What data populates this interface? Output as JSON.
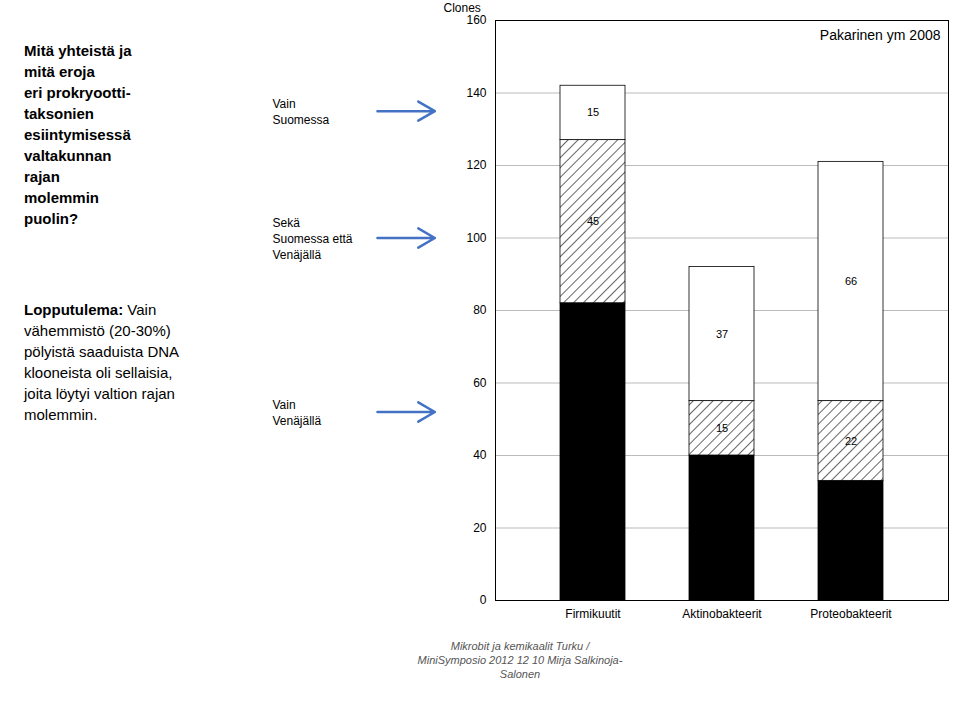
{
  "chart_data": {
    "type": "bar",
    "stacked": true,
    "title": "Pakarinen ym 2008",
    "ylabel": "Clones",
    "categories": [
      "Firmikuutit",
      "Aktinobakteerit",
      "Proteobakteerit"
    ],
    "series": [
      {
        "color": "black",
        "values": [
          82,
          40,
          33
        ],
        "data_labels": false
      },
      {
        "color": "white",
        "line_style": "hatched",
        "values": [
          45,
          15,
          22
        ],
        "data_labels": true
      },
      {
        "color": "white",
        "values": [
          15,
          37,
          66
        ],
        "data_labels": true
      }
    ],
    "ylim": [
      0,
      160
    ],
    "yticks": [
      0,
      20,
      40,
      60,
      80,
      100,
      120,
      140,
      160
    ],
    "grid": true,
    "annotations": {
      "arrow_color": "#4472c4",
      "arrows": [
        {
          "text": "Vain\nSuomessa",
          "y": 135
        },
        {
          "text": "Sekä\nSuomessa että\nVenäjällä",
          "y": 100
        },
        {
          "text": "Vain\nVenäjällä",
          "y": 52
        }
      ],
      "notes": [
        [
          {
            "text": "Mitä yhteistä ja\nmitä eroja\neri prokryootti-\ntaksonien\nesiintymisessä\nvaltakunnan\nrajan\nmolemmin\npuolin?",
            "bold": true
          }
        ],
        [
          {
            "text": "Lopputulema:",
            "bold": true
          },
          {
            "text": " Vain\nvähemmistö (20-30%)\npölyistä saaduista DNA\nklooneista oli sellaisia,\njoita löytyi valtion rajan\nmolemmin.",
            "bold": false
          }
        ]
      ],
      "caption": "Mikrobit ja kemikaalit  Turku  /\nMiniSymposio  2012 12 10  Mirja Salkinoja-\nSalonen"
    }
  }
}
